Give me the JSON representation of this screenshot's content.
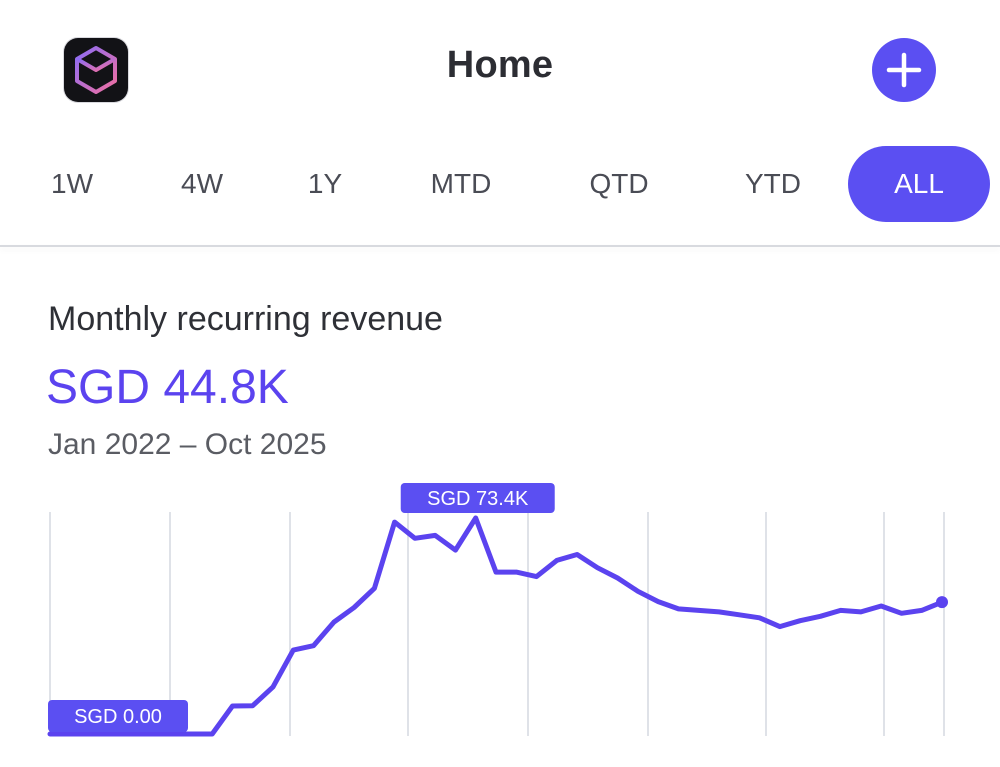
{
  "header": {
    "title": "Home",
    "app_icon": "cube-app-icon",
    "add_icon": "plus-icon",
    "accent_color": "#5b4ff2"
  },
  "range_tabs": {
    "items": [
      "1W",
      "4W",
      "1Y",
      "MTD",
      "QTD",
      "YTD",
      "ALL"
    ],
    "selected": "ALL"
  },
  "metric": {
    "title": "Monthly recurring revenue",
    "value": "SGD 44.8K",
    "range": "Jan 2022 – Oct 2025"
  },
  "chart_data": {
    "type": "line",
    "title": "",
    "xlabel": "",
    "ylabel": "",
    "x_range": [
      "Jan 2022",
      "Oct 2025"
    ],
    "ylim": [
      0,
      73.4
    ],
    "unit": "SGD K",
    "grid": "vertical",
    "series": [
      {
        "color": "#5b43ef",
        "values": [
          0,
          0,
          0,
          0,
          0,
          0,
          0,
          0,
          0,
          9.5,
          9.6,
          16,
          28.5,
          30,
          38,
          43,
          49.5,
          72,
          66.5,
          67.5,
          62.5,
          73.4,
          55,
          55,
          53.5,
          59,
          61,
          56.5,
          53,
          48.5,
          45,
          42.5,
          42,
          41.5,
          40.5,
          39.5,
          36.5,
          38.5,
          40,
          42,
          41.5,
          43.5,
          41,
          42,
          44.8
        ]
      }
    ],
    "annotations": [
      {
        "label": "SGD 73.4K",
        "type": "max"
      },
      {
        "label": "SGD 0.00",
        "type": "min"
      }
    ]
  }
}
